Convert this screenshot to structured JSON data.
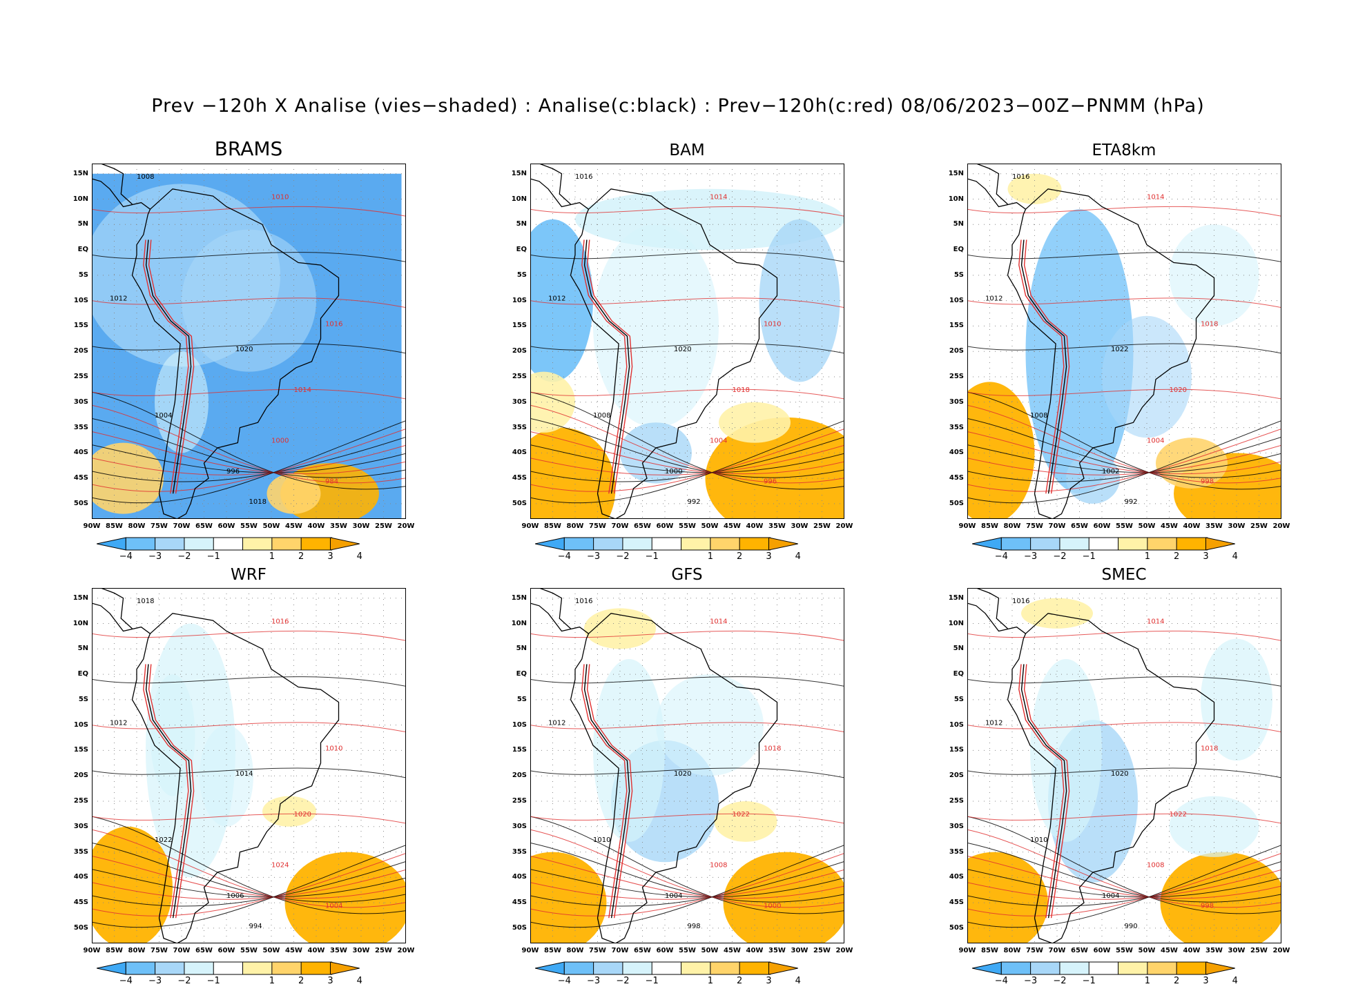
{
  "title": "Prev −120h X Analise (vies−shaded) : Analise(c:black) : Prev−120h(c:red) 08/06/2023−00Z−PNMM (hPa)",
  "lat_labels": [
    "15N",
    "10N",
    "5N",
    "EQ",
    "5S",
    "10S",
    "15S",
    "20S",
    "25S",
    "30S",
    "35S",
    "40S",
    "45S",
    "50S"
  ],
  "lon_labels": [
    "90W",
    "85W",
    "80W",
    "75W",
    "70W",
    "65W",
    "60W",
    "55W",
    "50W",
    "45W",
    "40W",
    "35W",
    "30W",
    "25W",
    "20W"
  ],
  "colorbar": {
    "ticks": [
      "−4",
      "−3",
      "−2",
      "−1",
      "1",
      "2",
      "3",
      "4"
    ],
    "colors": [
      "#3fa9f5",
      "#6ec0f8",
      "#a8d7f8",
      "#d6f3fb",
      "#ffffff",
      "#fff2a8",
      "#ffd46b",
      "#ffb300",
      "#f5a000"
    ]
  },
  "colors": {
    "analysis_contour": "#000000",
    "forecast_contour": "#e03030"
  },
  "panels": [
    {
      "model": "BRAMS",
      "isobars": [
        "1008",
        "1010",
        "1012",
        "1016",
        "1020",
        "1014",
        "1004",
        "1000",
        "996",
        "984",
        "1018"
      ]
    },
    {
      "model": "BAM",
      "isobars": [
        "1016",
        "1014",
        "1012",
        "1010",
        "1020",
        "1018",
        "1008",
        "1004",
        "1000",
        "996",
        "992"
      ]
    },
    {
      "model": "ETA8km",
      "isobars": [
        "1016",
        "1014",
        "1012",
        "1018",
        "1022",
        "1020",
        "1008",
        "1004",
        "1002",
        "998",
        "992"
      ]
    },
    {
      "model": "WRF",
      "isobars": [
        "1018",
        "1016",
        "1012",
        "1010",
        "1014",
        "1020",
        "1022",
        "1024",
        "1006",
        "1004",
        "994"
      ]
    },
    {
      "model": "GFS",
      "isobars": [
        "1016",
        "1014",
        "1012",
        "1018",
        "1020",
        "1022",
        "1010",
        "1008",
        "1004",
        "1000",
        "998"
      ]
    },
    {
      "model": "SMEC",
      "isobars": [
        "1016",
        "1014",
        "1012",
        "1018",
        "1020",
        "1022",
        "1010",
        "1008",
        "1004",
        "998",
        "990"
      ]
    }
  ]
}
